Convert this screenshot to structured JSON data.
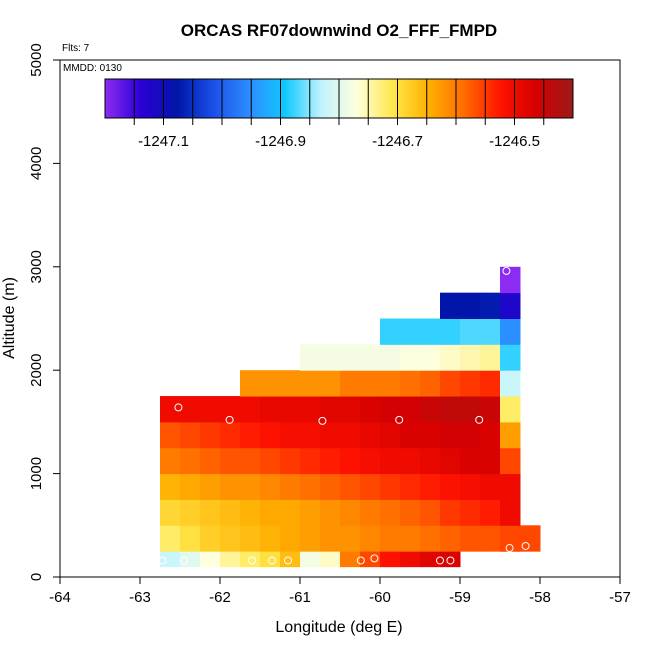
{
  "chart_data": {
    "type": "heatmap",
    "title": "ORCAS RF07downwind O2_FFF_FMPD",
    "note_flts": "Flts: 7",
    "note_mmdd": "MMDD: 0130",
    "xlabel": "Longitude (deg E)",
    "ylabel": "Altitude (m)",
    "xlim": [
      -64,
      -57
    ],
    "ylim": [
      0,
      5000
    ],
    "x_ticks": [
      -64,
      -63,
      -62,
      -61,
      -60,
      -59,
      -58,
      -57
    ],
    "y_ticks": [
      0,
      1000,
      2000,
      3000,
      4000,
      5000
    ],
    "colorbar": {
      "min": -1247.2,
      "max": -1246.4,
      "tick_values": [
        -1247.1,
        -1246.9,
        -1246.7,
        -1246.5
      ],
      "tick_labels": [
        "-1247.1",
        "-1246.9",
        "-1246.7",
        "-1246.5"
      ],
      "gradient_colors": [
        "#8c2cf2",
        "#2b00d6",
        "#0016a8",
        "#1a4fe8",
        "#2d8cff",
        "#10c8ff",
        "#bff3ff",
        "#ffffdd",
        "#ffe74a",
        "#ffb000",
        "#ff6a00",
        "#ff1200",
        "#d40000",
        "#9c1a1a"
      ]
    },
    "bands": [
      {
        "y0": 100,
        "y1": 250,
        "x0": -62.75,
        "x1": -59.0,
        "values": [
          -1246.82,
          -1246.8,
          -1246.77,
          -1246.74,
          -1246.72,
          -1246.7,
          -1246.66,
          -1246.78,
          -1246.76,
          -1246.6,
          -1246.56,
          -1246.52,
          -1246.5,
          -1246.48,
          -1246.47
        ]
      },
      {
        "y0": 250,
        "y1": 500,
        "x0": -62.75,
        "x1": -58.0,
        "values": [
          -1246.72,
          -1246.7,
          -1246.68,
          -1246.67,
          -1246.66,
          -1246.65,
          -1246.64,
          -1246.63,
          -1246.62,
          -1246.62,
          -1246.61,
          -1246.6,
          -1246.6,
          -1246.59,
          -1246.58,
          -1246.57,
          -1246.57,
          -1246.56,
          -1246.56
        ]
      },
      {
        "y0": 500,
        "y1": 750,
        "x0": -62.75,
        "x1": -58.25,
        "values": [
          -1246.69,
          -1246.68,
          -1246.67,
          -1246.66,
          -1246.65,
          -1246.64,
          -1246.64,
          -1246.63,
          -1246.62,
          -1246.61,
          -1246.6,
          -1246.59,
          -1246.58,
          -1246.57,
          -1246.55,
          -1246.54,
          -1246.53,
          -1246.52
        ]
      },
      {
        "y0": 750,
        "y1": 1000,
        "x0": -62.75,
        "x1": -58.25,
        "values": [
          -1246.65,
          -1246.64,
          -1246.63,
          -1246.62,
          -1246.62,
          -1246.61,
          -1246.6,
          -1246.59,
          -1246.58,
          -1246.57,
          -1246.56,
          -1246.55,
          -1246.54,
          -1246.53,
          -1246.52,
          -1246.51,
          -1246.5,
          -1246.49
        ]
      },
      {
        "y0": 1000,
        "y1": 1250,
        "x0": -62.75,
        "x1": -58.5,
        "values": [
          -1246.6,
          -1246.59,
          -1246.58,
          -1246.57,
          -1246.57,
          -1246.56,
          -1246.55,
          -1246.54,
          -1246.53,
          -1246.52,
          -1246.51,
          -1246.5,
          -1246.5,
          -1246.49,
          -1246.48,
          -1246.47,
          -1246.47
        ]
      },
      {
        "y0": 1250,
        "y1": 1500,
        "x0": -62.75,
        "x1": -58.5,
        "values": [
          -1246.57,
          -1246.56,
          -1246.55,
          -1246.54,
          -1246.53,
          -1246.52,
          -1246.51,
          -1246.51,
          -1246.5,
          -1246.5,
          -1246.49,
          -1246.48,
          -1246.47,
          -1246.47,
          -1246.46,
          -1246.46,
          -1246.47
        ]
      },
      {
        "y0": 1500,
        "y1": 1750,
        "x0": -62.75,
        "x1": -58.5,
        "values": [
          -1246.5,
          -1246.5,
          -1246.5,
          -1246.5,
          -1246.5,
          -1246.49,
          -1246.49,
          -1246.49,
          -1246.48,
          -1246.48,
          -1246.47,
          -1246.46,
          -1246.46,
          -1246.45,
          -1246.44,
          -1246.44,
          -1246.45
        ]
      },
      {
        "y0": 1750,
        "y1": 2000,
        "x0": -61.75,
        "x1": -58.5,
        "values": [
          -1246.62,
          -1246.62,
          -1246.62,
          -1246.62,
          -1246.62,
          -1246.6,
          -1246.6,
          -1246.6,
          -1246.59,
          -1246.58,
          -1246.56,
          -1246.55,
          -1246.54
        ]
      },
      {
        "y0": 2000,
        "y1": 2250,
        "x0": -61.0,
        "x1": -58.5,
        "values": [
          -1246.78,
          -1246.78,
          -1246.78,
          -1246.78,
          -1246.78,
          -1246.77,
          -1246.77,
          -1246.76,
          -1246.75,
          -1246.74
        ]
      },
      {
        "y0": 2250,
        "y1": 2500,
        "x0": -60.0,
        "x1": -58.5,
        "values": [
          -1246.88,
          -1246.88,
          -1246.88,
          -1246.88,
          -1246.87,
          -1246.87
        ]
      },
      {
        "y0": 2500,
        "y1": 2750,
        "x0": -59.25,
        "x1": -58.5,
        "values": [
          -1247.08,
          -1247.08,
          -1247.07
        ]
      }
    ],
    "column": {
      "x0": -58.5,
      "x1": -58.25,
      "cells": [
        {
          "y0": 250,
          "y1": 500,
          "value": -1246.56
        },
        {
          "y0": 500,
          "y1": 750,
          "value": -1246.5
        },
        {
          "y0": 750,
          "y1": 1000,
          "value": -1246.5
        },
        {
          "y0": 1000,
          "y1": 1250,
          "value": -1246.56
        },
        {
          "y0": 1250,
          "y1": 1500,
          "value": -1246.63
        },
        {
          "y0": 1500,
          "y1": 1750,
          "value": -1246.72
        },
        {
          "y0": 1750,
          "y1": 2000,
          "value": -1246.82
        },
        {
          "y0": 2000,
          "y1": 2250,
          "value": -1246.88
        },
        {
          "y0": 2250,
          "y1": 2500,
          "value": -1246.95
        },
        {
          "y0": 2500,
          "y1": 2750,
          "value": -1247.12
        },
        {
          "y0": 2750,
          "y1": 3000,
          "value": -1247.2
        }
      ]
    },
    "markers": [
      {
        "x": -62.72,
        "y": 160
      },
      {
        "x": -62.45,
        "y": 160
      },
      {
        "x": -61.6,
        "y": 160
      },
      {
        "x": -61.35,
        "y": 160
      },
      {
        "x": -61.15,
        "y": 160
      },
      {
        "x": -60.24,
        "y": 160
      },
      {
        "x": -60.07,
        "y": 180
      },
      {
        "x": -59.25,
        "y": 160
      },
      {
        "x": -59.12,
        "y": 160
      },
      {
        "x": -58.38,
        "y": 280
      },
      {
        "x": -58.18,
        "y": 300
      },
      {
        "x": -62.52,
        "y": 1640
      },
      {
        "x": -61.88,
        "y": 1520
      },
      {
        "x": -60.72,
        "y": 1510
      },
      {
        "x": -59.76,
        "y": 1520
      },
      {
        "x": -58.76,
        "y": 1520
      },
      {
        "x": -58.42,
        "y": 2960
      }
    ]
  }
}
